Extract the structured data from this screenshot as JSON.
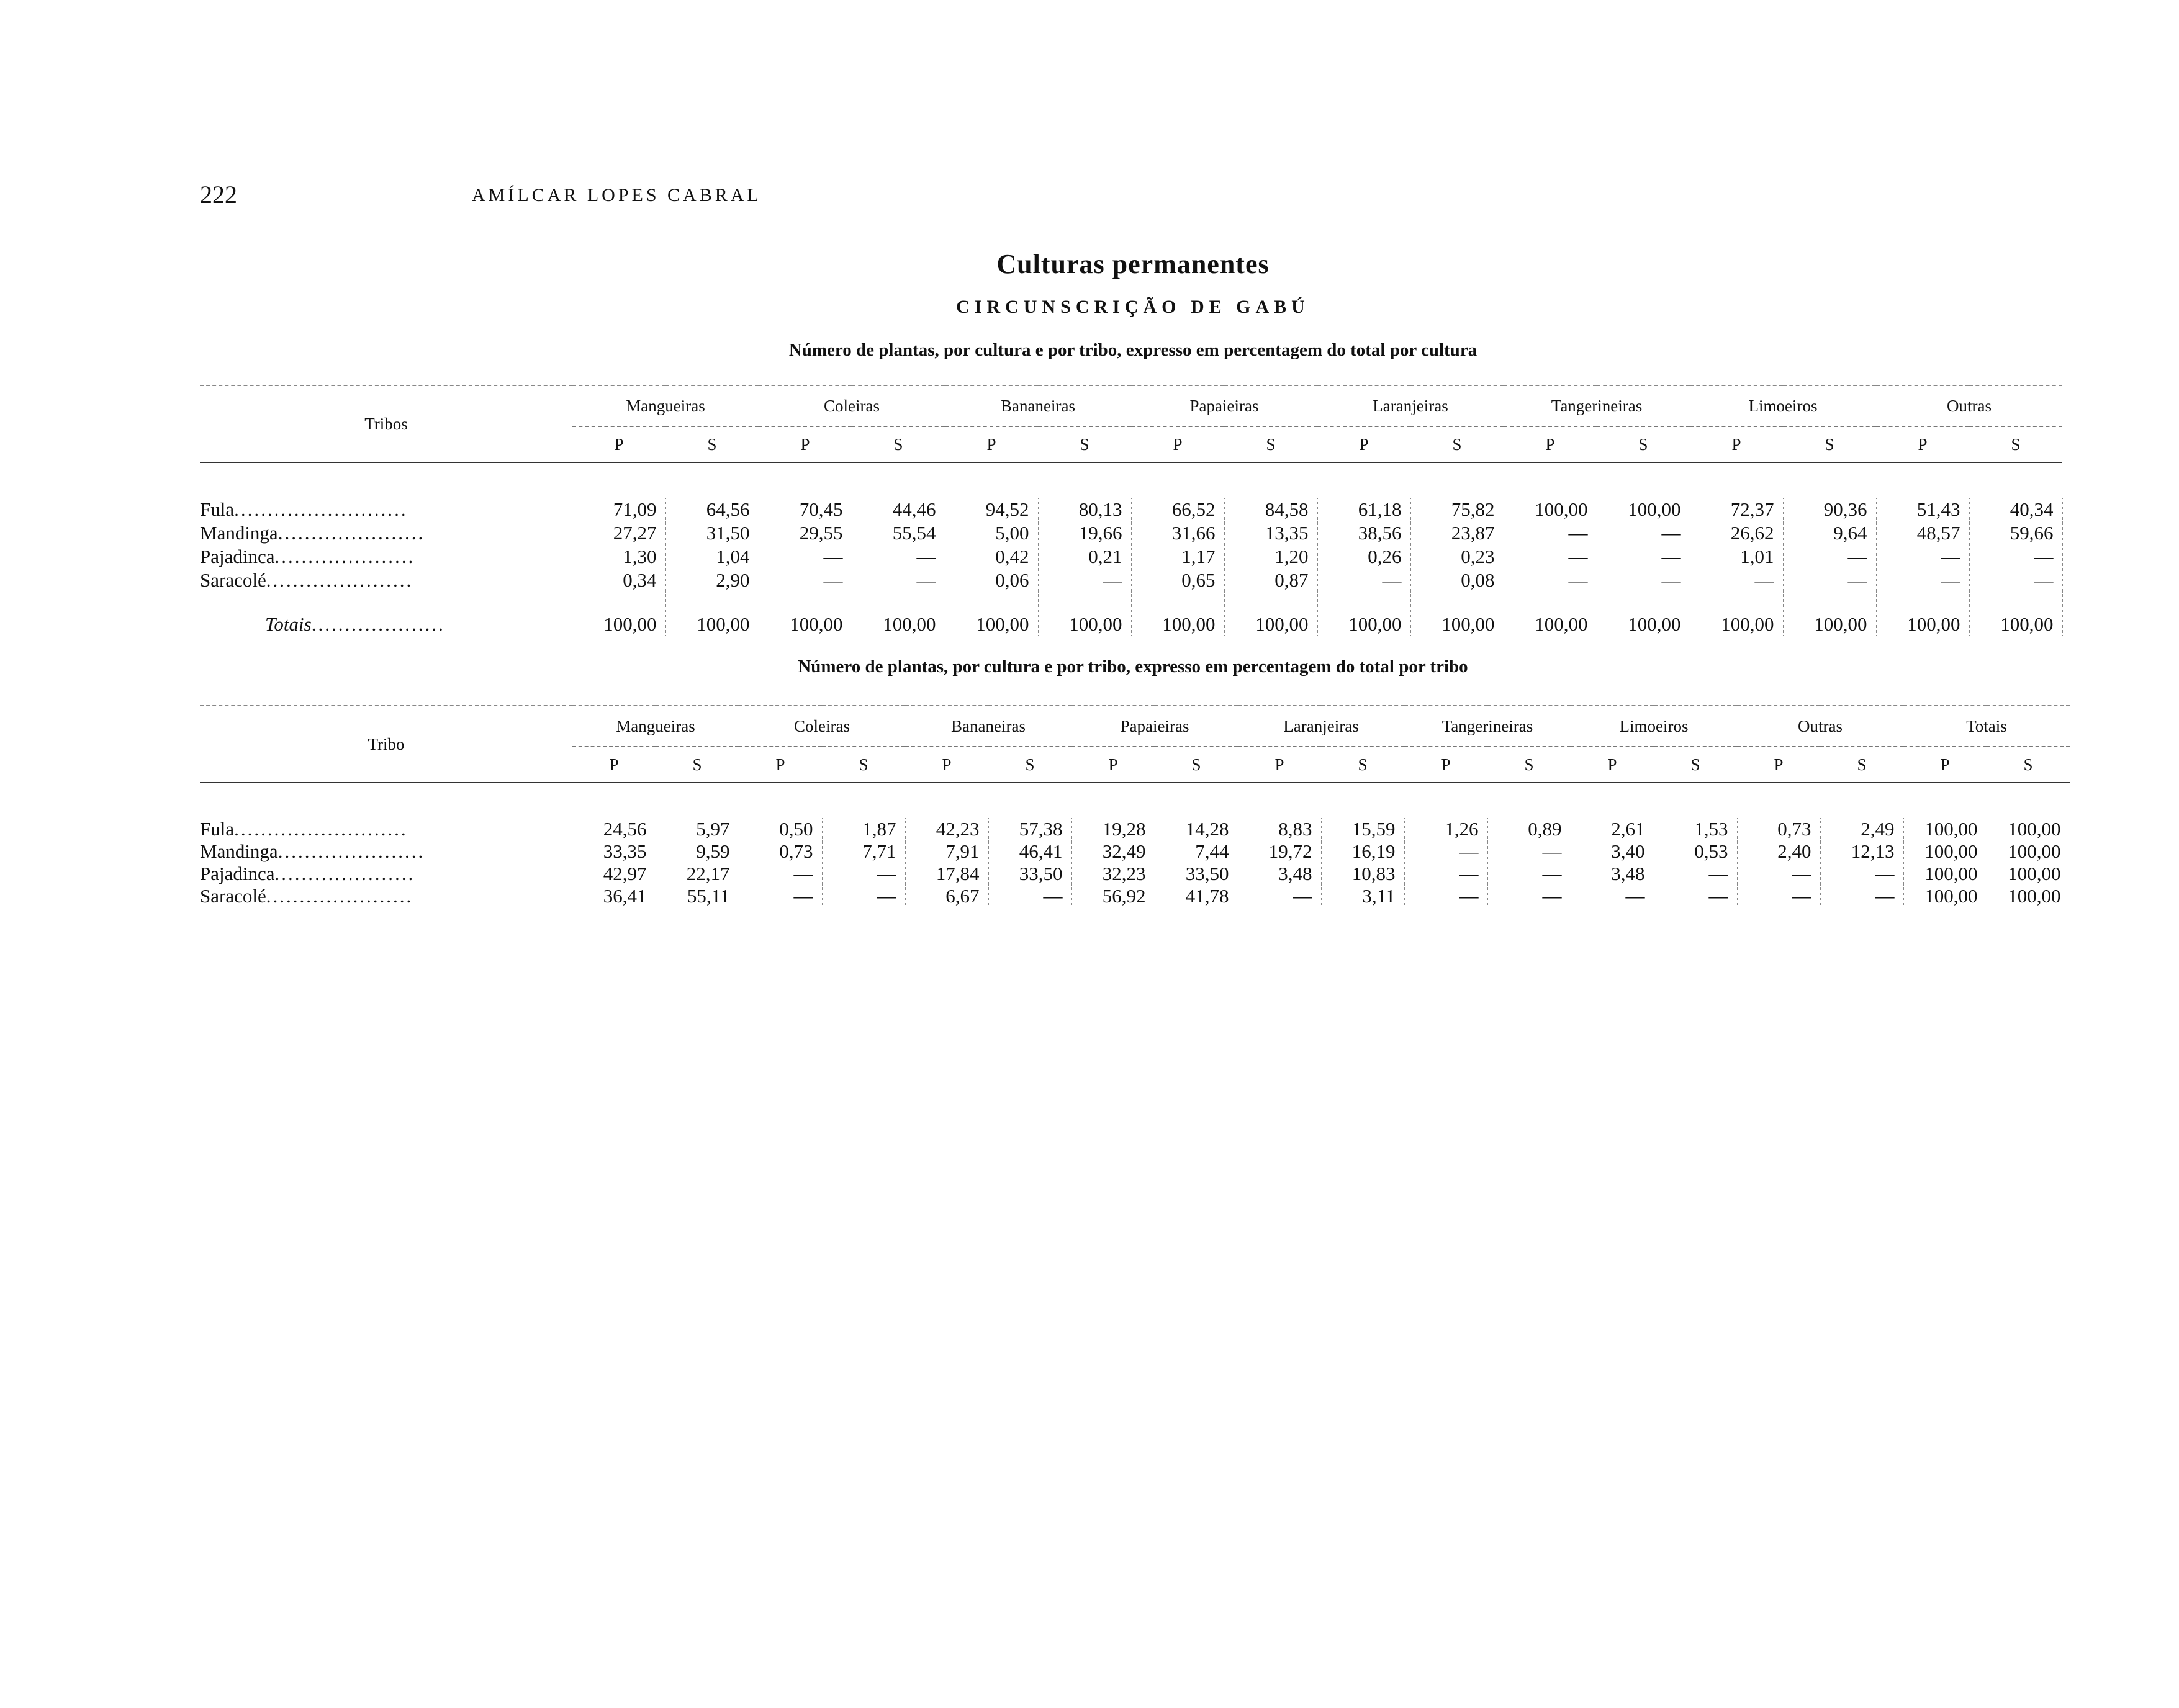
{
  "page_header": {
    "page_number": "222",
    "running_head": "AMÍLCAR LOPES CABRAL"
  },
  "title": "Culturas permanentes",
  "subtitle": "CIRCUNSCRIÇÃO DE GABÚ",
  "table1": {
    "caption": "Número de plantas, por cultura e por tribo, expresso em percentagem do total por cultura",
    "row_header": "Tribos",
    "groups": [
      "Mangueiras",
      "Coleiras",
      "Bananeiras",
      "Papaieiras",
      "Laranjeiras",
      "Tangerineiras",
      "Limoeiros",
      "Outras"
    ],
    "subcolumns": [
      "P",
      "S"
    ],
    "rows": [
      {
        "label": "Fula",
        "values": [
          "71,09",
          "64,56",
          "70,45",
          "44,46",
          "94,52",
          "80,13",
          "66,52",
          "84,58",
          "61,18",
          "75,82",
          "100,00",
          "100,00",
          "72,37",
          "90,36",
          "51,43",
          "40,34"
        ]
      },
      {
        "label": "Mandinga",
        "values": [
          "27,27",
          "31,50",
          "29,55",
          "55,54",
          "5,00",
          "19,66",
          "31,66",
          "13,35",
          "38,56",
          "23,87",
          "—",
          "—",
          "26,62",
          "9,64",
          "48,57",
          "59,66"
        ]
      },
      {
        "label": "Pajadinca",
        "values": [
          "1,30",
          "1,04",
          "—",
          "—",
          "0,42",
          "0,21",
          "1,17",
          "1,20",
          "0,26",
          "0,23",
          "—",
          "—",
          "1,01",
          "—",
          "—",
          "—"
        ]
      },
      {
        "label": "Saracolé",
        "values": [
          "0,34",
          "2,90",
          "—",
          "—",
          "0,06",
          "—",
          "0,65",
          "0,87",
          "—",
          "0,08",
          "—",
          "—",
          "—",
          "—",
          "—",
          "—"
        ]
      }
    ],
    "totals": {
      "label": "Totais",
      "values": [
        "100,00",
        "100,00",
        "100,00",
        "100,00",
        "100,00",
        "100,00",
        "100,00",
        "100,00",
        "100,00",
        "100,00",
        "100,00",
        "100,00",
        "100,00",
        "100,00",
        "100,00",
        "100,00"
      ]
    }
  },
  "table2": {
    "caption": "Número de plantas, por cultura e por tribo, expresso em percentagem do total por tribo",
    "row_header": "Tribo",
    "groups": [
      "Mangueiras",
      "Coleiras",
      "Bananeiras",
      "Papaieiras",
      "Laranjeiras",
      "Tangerineiras",
      "Limoeiros",
      "Outras",
      "Totais"
    ],
    "subcolumns": [
      "P",
      "S"
    ],
    "rows": [
      {
        "label": "Fula",
        "values": [
          "24,56",
          "5,97",
          "0,50",
          "1,87",
          "42,23",
          "57,38",
          "19,28",
          "14,28",
          "8,83",
          "15,59",
          "1,26",
          "0,89",
          "2,61",
          "1,53",
          "0,73",
          "2,49",
          "100,00",
          "100,00"
        ]
      },
      {
        "label": "Mandinga",
        "values": [
          "33,35",
          "9,59",
          "0,73",
          "7,71",
          "7,91",
          "46,41",
          "32,49",
          "7,44",
          "19,72",
          "16,19",
          "—",
          "—",
          "3,40",
          "0,53",
          "2,40",
          "12,13",
          "100,00",
          "100,00"
        ]
      },
      {
        "label": "Pajadinca",
        "values": [
          "42,97",
          "22,17",
          "—",
          "—",
          "17,84",
          "33,50",
          "32,23",
          "33,50",
          "3,48",
          "10,83",
          "—",
          "—",
          "3,48",
          "—",
          "—",
          "—",
          "100,00",
          "100,00"
        ]
      },
      {
        "label": "Saracolé",
        "values": [
          "36,41",
          "55,11",
          "—",
          "—",
          "6,67",
          "—",
          "56,92",
          "41,78",
          "—",
          "3,11",
          "—",
          "—",
          "—",
          "—",
          "—",
          "—",
          "100,00",
          "100,00"
        ]
      }
    ]
  }
}
